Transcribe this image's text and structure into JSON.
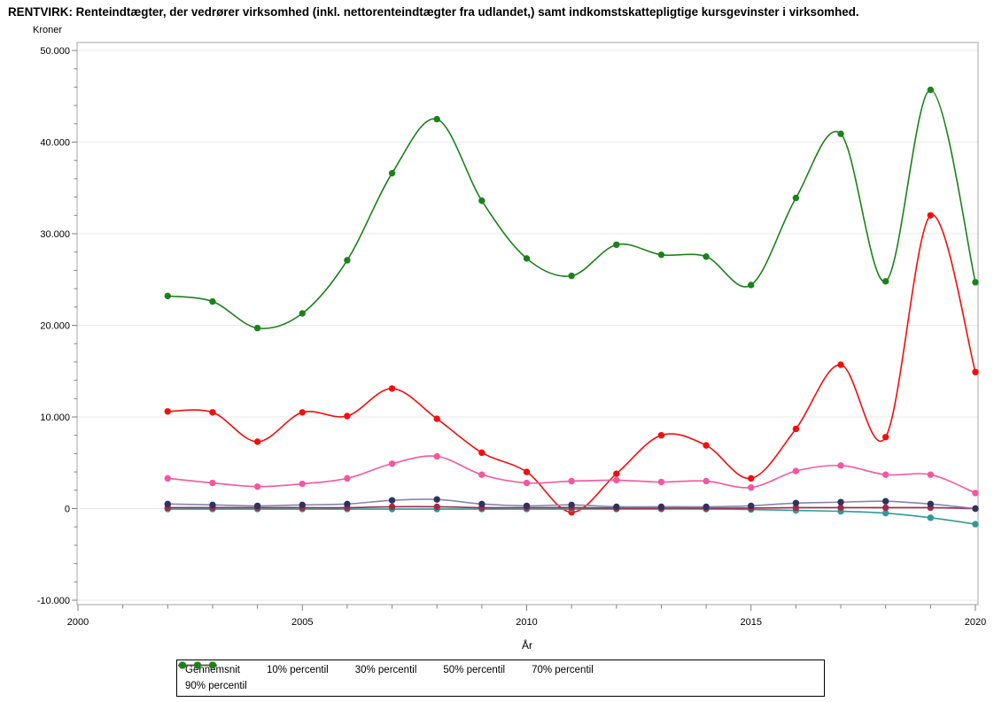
{
  "title": "RENTVIRK: Renteindtægter, der vedrører virksomhed (inkl. nettorenteindtægter fra udlandet,) samt indkomstskattepligtige kursgevinster i virksomhed.",
  "chart_data": {
    "type": "line",
    "title": "RENTVIRK: Renteindtægter, der vedrører virksomhed (inkl. nettorenteindtægter fra udlandet,) samt indkomstskattepligtige kursgevinster i virksomhed.",
    "xlabel": "År",
    "ylabel": "Kroner",
    "grid": "horizontal",
    "legend_position": "bottom",
    "x_range": [
      2000,
      2020
    ],
    "ylim": [
      -10000,
      50000
    ],
    "x_axis": {
      "major_ticks": [
        2000,
        2005,
        2010,
        2015,
        2020
      ],
      "major_tick_labels": [
        "2000",
        "2005",
        "2010",
        "2015",
        "2020"
      ],
      "minor_tick_step": 1
    },
    "y_axis": {
      "major_ticks": [
        50000,
        40000,
        30000,
        20000,
        10000,
        0,
        -10000
      ],
      "major_tick_labels": [
        "50.000",
        "40.000",
        "30.000",
        "20.000",
        "10.000",
        "0",
        "-10.000"
      ],
      "minor_tick_step": 2000
    },
    "x": [
      2002,
      2003,
      2004,
      2005,
      2006,
      2007,
      2008,
      2009,
      2010,
      2011,
      2012,
      2013,
      2014,
      2015,
      2016,
      2017,
      2018,
      2019,
      2020
    ],
    "series": [
      {
        "name": "Gennemsnit",
        "color": "#F50D0D",
        "values": [
          10600,
          10500,
          7300,
          10500,
          10100,
          13100,
          9800,
          6100,
          4000,
          -400,
          3800,
          8000,
          6900,
          3300,
          8700,
          15700,
          7800,
          32000,
          14900
        ]
      },
      {
        "name": "10% percentil",
        "color": "#2C9B98",
        "values": [
          -50,
          -50,
          -50,
          -50,
          -50,
          -50,
          -50,
          -50,
          -50,
          -50,
          -50,
          -50,
          -50,
          -100,
          -200,
          -300,
          -500,
          -1000,
          -1700
        ]
      },
      {
        "name": "30% percentil",
        "color": "#A32A46",
        "values": [
          100,
          100,
          100,
          100,
          100,
          200,
          200,
          100,
          100,
          100,
          50,
          50,
          50,
          50,
          100,
          100,
          100,
          100,
          0
        ]
      },
      {
        "name": "50% percentil",
        "color": "#31315E",
        "line_color": "#8585AD",
        "values": [
          500,
          400,
          300,
          400,
          500,
          900,
          1000,
          500,
          300,
          400,
          200,
          200,
          200,
          300,
          600,
          700,
          800,
          500,
          0
        ]
      },
      {
        "name": "70% percentil",
        "color": "#F6569F",
        "values": [
          3300,
          2800,
          2400,
          2700,
          3300,
          4900,
          5700,
          3700,
          2800,
          3000,
          3100,
          2900,
          3000,
          2300,
          4100,
          4700,
          3700,
          3700,
          1700
        ]
      },
      {
        "name": "90% percentil",
        "color": "#1B821B",
        "values": [
          23200,
          22600,
          19700,
          21300,
          27100,
          36600,
          42500,
          33600,
          27300,
          25400,
          28800,
          27700,
          27500,
          24400,
          33900,
          40900,
          24800,
          45700,
          24700
        ]
      }
    ]
  },
  "colors": {
    "gridline": "#E9E9E9",
    "frame": "#A6A6A6",
    "tick": "#808080",
    "legend_border": "#000000"
  }
}
